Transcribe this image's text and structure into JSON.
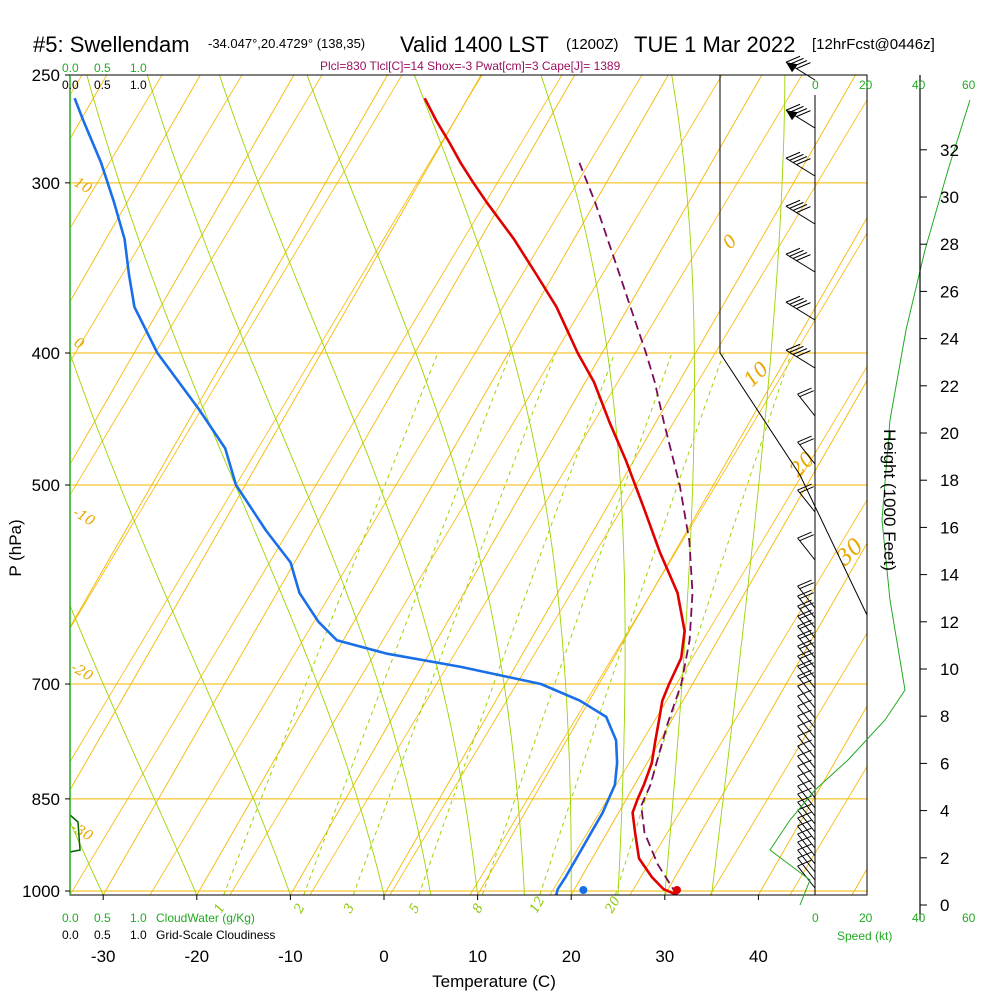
{
  "header": {
    "station": "#5: Swellendam",
    "coords": "-34.047°,20.4729° (138,35)",
    "valid": "Valid 1400 LST",
    "zulu": "(1200Z)",
    "date": "TUE 1 Mar 2022",
    "forecast": "[12hrFcst@0446z]"
  },
  "indices_line": "Plcl=830 Tlcl[C]=14 Shox=-3 Pwat[cm]=3 Cape[J]= 1389",
  "colors": {
    "temperature": "#e00000",
    "dewpoint": "#1a6ee8",
    "parcel": "#7a0a5a",
    "isotherm": "#f5b800",
    "dry_adiabat": "#f5b800",
    "moist_adiabat": "#9bd400",
    "mixing_ratio": "#9bd400",
    "cloud": "#22aa22",
    "wind": "#000000"
  },
  "labels": {
    "y_title": "P (hPa)",
    "x_title": "Temperature (C)",
    "height_title": "Height (1000 Feet)",
    "speed_title": "Speed (kt)",
    "cloudwater": "CloudWater (g/Kg)",
    "cloudiness": "Grid-Scale Cloudiness"
  },
  "scales": {
    "cloud_ticks": [
      "0.0",
      "0.5",
      "1.0"
    ],
    "speed_ticks": [
      "0",
      "20",
      "40",
      "60"
    ]
  },
  "chart_data": {
    "type": "line",
    "title": "#5: Swellendam -34.047°,20.4729° (138,35) Valid 1400 LST (1200Z) TUE 1 Mar 2022 [12hrFcst@0446z]",
    "xlabel": "Temperature (C)",
    "ylabel": "P (hPa)",
    "xlim": [
      -35,
      45
    ],
    "ylim_hpa": [
      1000,
      250
    ],
    "y_scale": "log",
    "x_ticks": [
      -30,
      -20,
      -10,
      0,
      10,
      20,
      30,
      40
    ],
    "p_ticks": [
      250,
      300,
      400,
      500,
      700,
      850,
      1000
    ],
    "height_ticks_kft": [
      0,
      2,
      4,
      6,
      8,
      10,
      12,
      14,
      16,
      18,
      20,
      22,
      24,
      26,
      28,
      30,
      32
    ],
    "isotherm_labels": [
      {
        "t": 10,
        "text": "10"
      },
      {
        "t": 0,
        "text": "0"
      },
      {
        "t": -10,
        "text": "-10"
      },
      {
        "t": -20,
        "text": "-20"
      },
      {
        "t": -30,
        "text": "-30"
      }
    ],
    "mixing_ratio_labels": [
      "1",
      "2",
      "3",
      "5",
      "8",
      "12",
      "20"
    ],
    "series": [
      {
        "name": "Temperature",
        "points": [
          [
            1000,
            31.3
          ],
          [
            990,
            29.5
          ],
          [
            970,
            27.5
          ],
          [
            940,
            25.0
          ],
          [
            900,
            23.0
          ],
          [
            870,
            21.5
          ],
          [
            850,
            21.2
          ],
          [
            830,
            21.0
          ],
          [
            800,
            20.5
          ],
          [
            770,
            19.5
          ],
          [
            740,
            18.5
          ],
          [
            720,
            17.8
          ],
          [
            700,
            17.5
          ],
          [
            670,
            17.2
          ],
          [
            640,
            15.9
          ],
          [
            600,
            12.8
          ],
          [
            560,
            8.4
          ],
          [
            520,
            4.0
          ],
          [
            480,
            -0.8
          ],
          [
            450,
            -4.9
          ],
          [
            420,
            -9.1
          ],
          [
            400,
            -12.6
          ],
          [
            370,
            -17.7
          ],
          [
            350,
            -21.9
          ],
          [
            330,
            -26.4
          ],
          [
            310,
            -31.6
          ],
          [
            300,
            -34.2
          ],
          [
            290,
            -36.8
          ],
          [
            280,
            -39.3
          ],
          [
            270,
            -42.0
          ],
          [
            260,
            -44.6
          ]
        ]
      },
      {
        "name": "Dewpoint",
        "points": [
          [
            1000,
            18.4
          ],
          [
            990,
            18.2
          ],
          [
            970,
            18.3
          ],
          [
            930,
            18.3
          ],
          [
            900,
            18.3
          ],
          [
            870,
            18.3
          ],
          [
            850,
            18.1
          ],
          [
            830,
            17.9
          ],
          [
            800,
            16.8
          ],
          [
            770,
            15.3
          ],
          [
            740,
            12.8
          ],
          [
            720,
            9.0
          ],
          [
            700,
            3.8
          ],
          [
            680,
            -5.8
          ],
          [
            665,
            -14.5
          ],
          [
            650,
            -20.7
          ],
          [
            630,
            -23.8
          ],
          [
            600,
            -27.6
          ],
          [
            570,
            -30.4
          ],
          [
            540,
            -35.0
          ],
          [
            500,
            -41.0
          ],
          [
            470,
            -44.4
          ],
          [
            440,
            -49.6
          ],
          [
            400,
            -57.5
          ],
          [
            370,
            -62.8
          ],
          [
            350,
            -65.4
          ],
          [
            330,
            -68.0
          ],
          [
            310,
            -71.4
          ],
          [
            290,
            -75.2
          ],
          [
            270,
            -79.7
          ],
          [
            260,
            -82.0
          ]
        ]
      },
      {
        "name": "Parcel",
        "points": [
          [
            1000,
            31.3
          ],
          [
            950,
            27.4
          ],
          [
            900,
            24.0
          ],
          [
            860,
            22.0
          ],
          [
            830,
            21.7
          ],
          [
            800,
            21.0
          ],
          [
            750,
            19.8
          ],
          [
            700,
            18.8
          ],
          [
            650,
            17.0
          ],
          [
            600,
            14.4
          ],
          [
            550,
            10.9
          ],
          [
            500,
            6.4
          ],
          [
            450,
            0.9
          ],
          [
            420,
            -2.6
          ],
          [
            400,
            -5.3
          ],
          [
            370,
            -9.8
          ],
          [
            350,
            -13.0
          ],
          [
            330,
            -16.4
          ],
          [
            310,
            -20.0
          ],
          [
            290,
            -24.1
          ]
        ]
      }
    ],
    "height_profile_kft": [
      [
        0,
        0
      ],
      [
        2000,
        2
      ],
      [
        4000,
        4
      ],
      [
        6000,
        5.9
      ],
      [
        8000,
        7.7
      ],
      [
        10000,
        9.7
      ],
      [
        12000,
        11.7
      ],
      [
        14000,
        13.7
      ],
      [
        16000,
        15.7
      ],
      [
        18000,
        17.7
      ],
      [
        20000,
        19.6
      ],
      [
        24000,
        23.4
      ],
      [
        28000,
        27.2
      ],
      [
        32000,
        31.1
      ]
    ]
  }
}
